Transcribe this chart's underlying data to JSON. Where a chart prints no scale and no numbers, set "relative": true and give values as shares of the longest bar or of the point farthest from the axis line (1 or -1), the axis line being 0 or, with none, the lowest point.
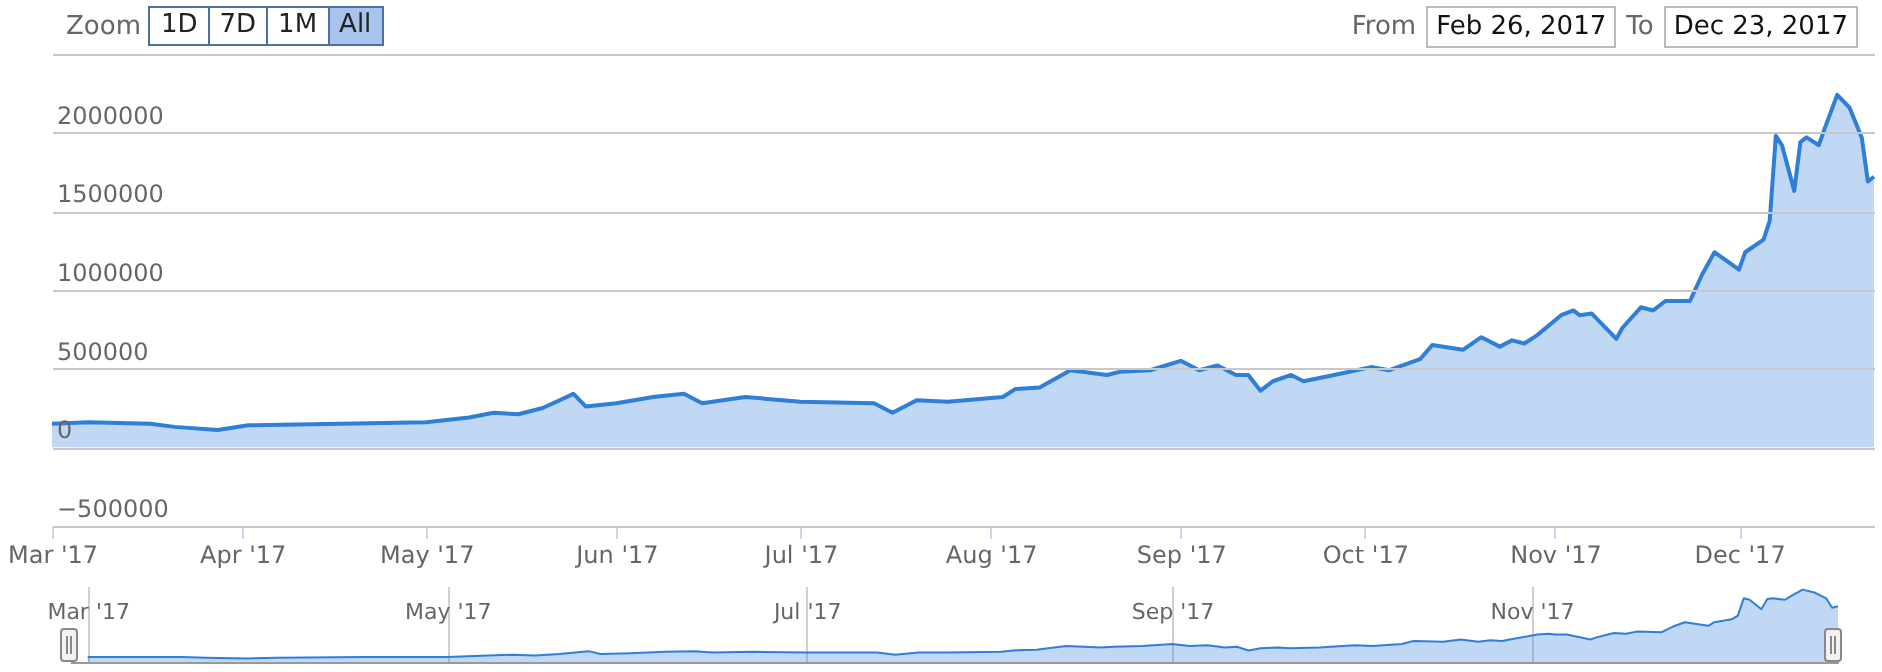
{
  "chart_data": [
    {
      "type": "area",
      "annotations": [
        "Zoom",
        "1D",
        "7D",
        "1M",
        "All",
        "From",
        "Feb 26, 2017",
        "To",
        "Dec 23, 2017"
      ],
      "x": [
        "2017-03-01",
        "2017-03-07",
        "2017-03-17",
        "2017-03-21",
        "2017-03-28",
        "2017-04-02",
        "2017-04-17",
        "2017-05-01",
        "2017-05-08",
        "2017-05-12",
        "2017-05-16",
        "2017-05-20",
        "2017-05-25",
        "2017-05-27",
        "2017-06-01",
        "2017-06-07",
        "2017-06-12",
        "2017-06-15",
        "2017-06-22",
        "2017-07-01",
        "2017-07-13",
        "2017-07-16",
        "2017-07-20",
        "2017-07-25",
        "2017-08-03",
        "2017-08-05",
        "2017-08-09",
        "2017-08-14",
        "2017-08-20",
        "2017-08-22",
        "2017-08-27",
        "2017-09-01",
        "2017-09-04",
        "2017-09-07",
        "2017-09-10",
        "2017-09-12",
        "2017-09-14",
        "2017-09-16",
        "2017-09-19",
        "2017-09-21",
        "2017-09-26",
        "2017-10-02",
        "2017-10-05",
        "2017-10-10",
        "2017-10-12",
        "2017-10-17",
        "2017-10-20",
        "2017-10-23",
        "2017-10-25",
        "2017-10-27",
        "2017-10-29",
        "2017-11-02",
        "2017-11-04",
        "2017-11-05",
        "2017-11-07",
        "2017-11-11",
        "2017-11-12",
        "2017-11-15",
        "2017-11-17",
        "2017-11-19",
        "2017-11-23",
        "2017-11-25",
        "2017-11-27",
        "2017-12-01",
        "2017-12-02",
        "2017-12-05",
        "2017-12-06",
        "2017-12-07",
        "2017-12-08",
        "2017-12-10",
        "2017-12-11",
        "2017-12-12",
        "2017-12-14",
        "2017-12-15",
        "2017-12-17",
        "2017-12-19",
        "2017-12-21",
        "2017-12-22",
        "2017-12-23"
      ],
      "series": [
        {
          "color": "#2f7ed8",
          "values": [
            150000,
            160000,
            150000,
            130000,
            110000,
            140000,
            150000,
            160000,
            190000,
            220000,
            210000,
            250000,
            340000,
            260000,
            280000,
            320000,
            340000,
            280000,
            320000,
            290000,
            280000,
            220000,
            300000,
            290000,
            320000,
            370000,
            380000,
            490000,
            460000,
            480000,
            490000,
            550000,
            490000,
            520000,
            460000,
            460000,
            360000,
            420000,
            460000,
            420000,
            460000,
            510000,
            490000,
            560000,
            650000,
            620000,
            700000,
            640000,
            680000,
            660000,
            710000,
            840000,
            870000,
            840000,
            850000,
            690000,
            760000,
            890000,
            870000,
            930000,
            930000,
            1100000,
            1240000,
            1130000,
            1240000,
            1320000,
            1440000,
            1980000,
            1920000,
            1630000,
            1940000,
            1970000,
            1920000,
            2030000,
            2240000,
            2160000,
            1970000,
            1690000,
            1720000
          ]
        }
      ],
      "xlim": [
        "2017-03-01",
        "2017-12-23"
      ],
      "xticks": [
        {
          "value": "2017-03-01",
          "label": "Mar '17"
        },
        {
          "value": "2017-04-01",
          "label": "Apr '17"
        },
        {
          "value": "2017-05-01",
          "label": "May '17"
        },
        {
          "value": "2017-06-01",
          "label": "Jun '17"
        },
        {
          "value": "2017-07-01",
          "label": "Jul '17"
        },
        {
          "value": "2017-08-01",
          "label": "Aug '17"
        },
        {
          "value": "2017-09-01",
          "label": "Sep '17"
        },
        {
          "value": "2017-10-01",
          "label": "Oct '17"
        },
        {
          "value": "2017-11-01",
          "label": "Nov '17"
        },
        {
          "value": "2017-12-01",
          "label": "Dec '17"
        }
      ],
      "ylim": [
        -500000,
        2500000
      ],
      "yticks": [
        -500000,
        0,
        500000,
        1000000,
        1500000,
        2000000,
        {
          "value": 2500000,
          "label": null
        }
      ],
      "grid": "y"
    },
    {
      "type": "area",
      "relative": true,
      "x": [
        "2017-03-01",
        "2017-03-07",
        "2017-03-17",
        "2017-03-21",
        "2017-03-28",
        "2017-04-02",
        "2017-04-17",
        "2017-05-01",
        "2017-05-08",
        "2017-05-12",
        "2017-05-16",
        "2017-05-20",
        "2017-05-25",
        "2017-05-27",
        "2017-06-01",
        "2017-06-07",
        "2017-06-12",
        "2017-06-15",
        "2017-06-22",
        "2017-07-01",
        "2017-07-13",
        "2017-07-16",
        "2017-07-20",
        "2017-07-25",
        "2017-08-03",
        "2017-08-05",
        "2017-08-09",
        "2017-08-14",
        "2017-08-20",
        "2017-08-22",
        "2017-08-27",
        "2017-09-01",
        "2017-09-04",
        "2017-09-07",
        "2017-09-10",
        "2017-09-12",
        "2017-09-14",
        "2017-09-16",
        "2017-09-19",
        "2017-09-21",
        "2017-09-26",
        "2017-10-02",
        "2017-10-05",
        "2017-10-10",
        "2017-10-12",
        "2017-10-17",
        "2017-10-20",
        "2017-10-23",
        "2017-10-25",
        "2017-10-27",
        "2017-10-29",
        "2017-11-02",
        "2017-11-04",
        "2017-11-05",
        "2017-11-07",
        "2017-11-11",
        "2017-11-12",
        "2017-11-15",
        "2017-11-17",
        "2017-11-19",
        "2017-11-23",
        "2017-11-25",
        "2017-11-27",
        "2017-12-01",
        "2017-12-02",
        "2017-12-05",
        "2017-12-06",
        "2017-12-07",
        "2017-12-08",
        "2017-12-10",
        "2017-12-11",
        "2017-12-12",
        "2017-12-14",
        "2017-12-15",
        "2017-12-17",
        "2017-12-19",
        "2017-12-21",
        "2017-12-22",
        "2017-12-23"
      ],
      "series": [
        {
          "color": "#2f7ed8",
          "values": [
            0.07,
            0.07,
            0.07,
            0.06,
            0.05,
            0.06,
            0.07,
            0.07,
            0.09,
            0.1,
            0.09,
            0.11,
            0.15,
            0.11,
            0.12,
            0.14,
            0.15,
            0.13,
            0.14,
            0.13,
            0.13,
            0.1,
            0.13,
            0.13,
            0.14,
            0.16,
            0.17,
            0.22,
            0.2,
            0.21,
            0.22,
            0.25,
            0.22,
            0.23,
            0.2,
            0.21,
            0.16,
            0.19,
            0.2,
            0.19,
            0.2,
            0.23,
            0.22,
            0.25,
            0.29,
            0.28,
            0.31,
            0.28,
            0.3,
            0.29,
            0.32,
            0.38,
            0.39,
            0.38,
            0.38,
            0.31,
            0.34,
            0.4,
            0.39,
            0.42,
            0.41,
            0.49,
            0.55,
            0.5,
            0.55,
            0.59,
            0.64,
            0.88,
            0.86,
            0.73,
            0.87,
            0.88,
            0.86,
            0.91,
            1,
            0.96,
            0.88,
            0.75,
            0.77
          ]
        }
      ],
      "xlim": [
        "2017-02-26",
        "2017-12-23"
      ],
      "xticks": [
        {
          "value": "2017-03-01",
          "label": "Mar '17"
        },
        {
          "value": "2017-05-01",
          "label": "May '17"
        },
        {
          "value": "2017-07-01",
          "label": "Jul '17"
        },
        {
          "value": "2017-09-01",
          "label": "Sep '17"
        },
        {
          "value": "2017-11-01",
          "label": "Nov '17"
        }
      ],
      "grid": "x",
      "tick_labels": "x"
    }
  ]
}
